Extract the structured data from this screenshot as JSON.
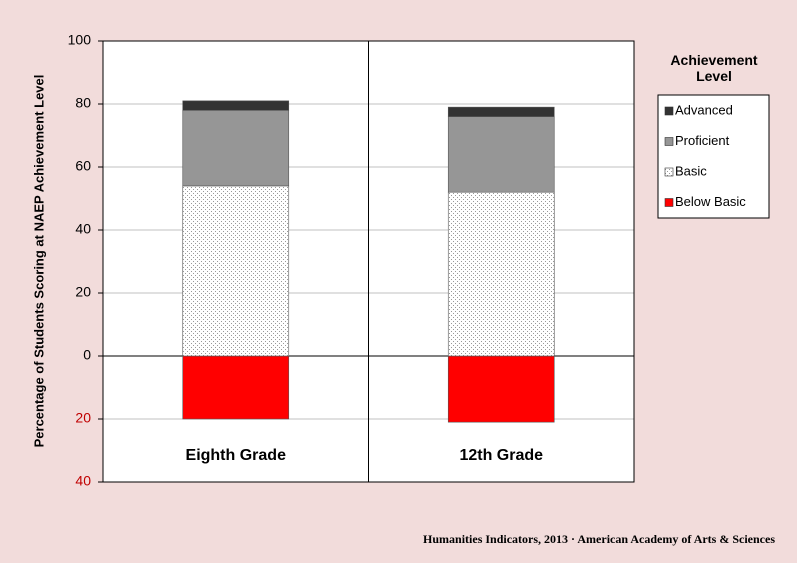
{
  "chart_data": {
    "type": "stacked_bar",
    "ylabel": "Percentage of Students Scoring at NAEP Achievement Level",
    "categories": [
      "Eighth Grade",
      "12th Grade"
    ],
    "series": [
      {
        "name": "Below Basic",
        "color": "#ff0000",
        "values": [
          -20,
          -21
        ]
      },
      {
        "name": "Basic",
        "color": "#ffffff",
        "pattern": "dots",
        "values": [
          54,
          52
        ]
      },
      {
        "name": "Proficient",
        "color": "#969696",
        "values": [
          24,
          24
        ]
      },
      {
        "name": "Advanced",
        "color": "#333333",
        "values": [
          3,
          3
        ]
      }
    ],
    "ylim": [
      -40,
      100
    ],
    "yticks": [
      {
        "value": -40,
        "label": "40"
      },
      {
        "value": -20,
        "label": "20"
      },
      0,
      20,
      40,
      60,
      80,
      100
    ],
    "grid": true,
    "legend_title": "Achievement Level",
    "legend": "right",
    "source": "Humanities Indicators, 2013 · American Academy of Arts & Sciences"
  }
}
